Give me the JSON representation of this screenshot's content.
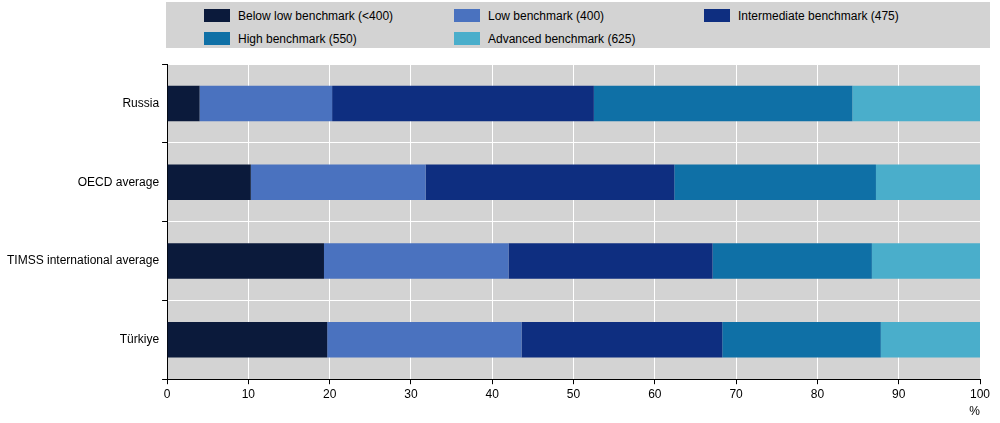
{
  "chart_data": {
    "type": "bar",
    "orientation": "horizontal",
    "stacked": true,
    "categories": [
      "Russia",
      "OECD average",
      "TIMSS international average",
      "Türkiye"
    ],
    "series": [
      {
        "name": "Below low benchmark (<400)",
        "color": "#0b1a3b",
        "values": [
          4,
          10.3,
          19.3,
          19.7
        ]
      },
      {
        "name": "Low benchmark (400)",
        "color": "#4a72bf",
        "values": [
          16.3,
          21.5,
          22.7,
          23.9
        ]
      },
      {
        "name": "Intermediate benchmark (475)",
        "color": "#0e2e80",
        "values": [
          32.2,
          30.6,
          25.1,
          24.7
        ]
      },
      {
        "name": "High benchmark (550)",
        "color": "#0f70a6",
        "values": [
          31.8,
          24.8,
          19.6,
          19.5
        ]
      },
      {
        "name": "Advanced benchmark (625)",
        "color": "#4aaecb",
        "values": [
          15.7,
          12.8,
          13.3,
          12.2
        ]
      }
    ],
    "x_label": "%",
    "xlim": [
      0,
      100
    ],
    "xticks": [
      0,
      10,
      20,
      30,
      40,
      50,
      60,
      70,
      80,
      90,
      100
    ],
    "grid": true,
    "legend": "top"
  }
}
